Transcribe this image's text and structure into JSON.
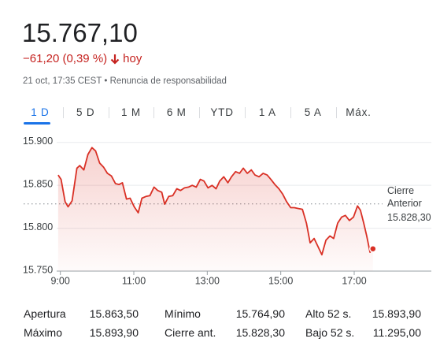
{
  "header": {
    "price": "15.767,10",
    "change": "−61,20 (0,39 %)",
    "period": "hoy",
    "timestamp": "21 oct, 17:35 CEST • Renuncia de responsabilidad"
  },
  "tabs": [
    "1 D",
    "5 D",
    "1 M",
    "6 M",
    "YTD",
    "1 A",
    "5 A",
    "Máx."
  ],
  "chart_data": {
    "type": "line",
    "color": "#d93025",
    "x": [
      8.94,
      9.02,
      9.13,
      9.21,
      9.32,
      9.45,
      9.53,
      9.64,
      9.75,
      9.86,
      9.96,
      10.07,
      10.18,
      10.28,
      10.39,
      10.5,
      10.6,
      10.69,
      10.8,
      10.9,
      11.01,
      11.12,
      11.22,
      11.33,
      11.44,
      11.55,
      11.65,
      11.76,
      11.84,
      11.95,
      12.06,
      12.17,
      12.27,
      12.38,
      12.49,
      12.59,
      12.7,
      12.81,
      12.91,
      13.02,
      13.13,
      13.24,
      13.34,
      13.45,
      13.56,
      13.66,
      13.77,
      13.88,
      13.98,
      14.09,
      14.2,
      14.3,
      14.41,
      14.52,
      14.63,
      14.73,
      14.84,
      14.95,
      15.05,
      15.16,
      15.27,
      15.37,
      15.48,
      15.59,
      15.7,
      15.8,
      15.91,
      16.02,
      16.12,
      16.23,
      16.34,
      16.44,
      16.55,
      16.66,
      16.76,
      16.87,
      16.98,
      17.09,
      17.17,
      17.26,
      17.34,
      17.43,
      17.51
    ],
    "values": [
      15862,
      15857,
      15831,
      15825,
      15832,
      15870,
      15873,
      15868,
      15886,
      15894,
      15890,
      15876,
      15871,
      15864,
      15861,
      15852,
      15851,
      15853,
      15834,
      15835,
      15825,
      15818,
      15835,
      15837,
      15838,
      15848,
      15844,
      15842,
      15828,
      15837,
      15838,
      15846,
      15844,
      15847,
      15848,
      15850,
      15848,
      15857,
      15855,
      15847,
      15850,
      15846,
      15855,
      15860,
      15853,
      15860,
      15866,
      15864,
      15870,
      15864,
      15868,
      15862,
      15860,
      15864,
      15862,
      15857,
      15851,
      15846,
      15840,
      15831,
      15824,
      15824,
      15823,
      15822,
      15806,
      15783,
      15788,
      15778,
      15769,
      15786,
      15791,
      15788,
      15806,
      15813,
      15815,
      15809,
      15813,
      15826,
      15821,
      15806,
      15791,
      15772,
      15776
    ],
    "xlim": [
      8.9,
      19.1
    ],
    "xticks": [
      {
        "value": 9,
        "label": "9:00"
      },
      {
        "value": 11,
        "label": "11:00"
      },
      {
        "value": 13,
        "label": "13:00"
      },
      {
        "value": 15,
        "label": "15:00"
      },
      {
        "value": 17,
        "label": "17:00"
      }
    ],
    "ylim": [
      15750,
      15920
    ],
    "yticks": [
      {
        "value": 15750,
        "label": "15.750"
      },
      {
        "value": 15800,
        "label": "15.800"
      },
      {
        "value": 15850,
        "label": "15.850"
      },
      {
        "value": 15900,
        "label": "15.900"
      }
    ],
    "grid": true,
    "reference": {
      "label": [
        "Cierre",
        "Anterior"
      ],
      "value": 15828.3,
      "value_label": "15.828,30"
    }
  },
  "stats": {
    "rows": [
      [
        "Apertura",
        "15.863,50",
        "Mínimo",
        "15.764,90",
        "Alto 52 s.",
        "15.893,90"
      ],
      [
        "Máximo",
        "15.893,90",
        "Cierre ant.",
        "15.828,30",
        "Bajo 52 s.",
        "11.295,00"
      ]
    ]
  }
}
